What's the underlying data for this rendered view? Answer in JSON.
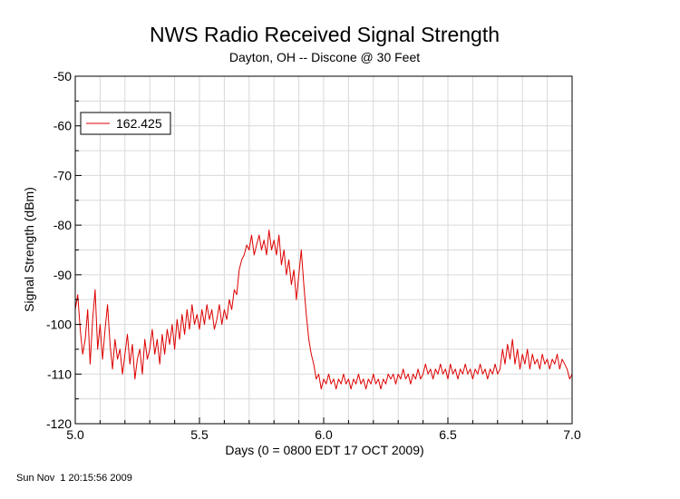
{
  "chart_data": {
    "type": "line",
    "title": "NWS Radio Received Signal Strength",
    "subtitle": "Dayton, OH -- Discone @ 30 Feet",
    "xlabel": "Days (0 = 0800 EDT 17 OCT 2009)",
    "ylabel": "Signal Strength (dBm)",
    "xlim": [
      5.0,
      7.0
    ],
    "ylim": [
      -120,
      -50
    ],
    "xticks": [
      "5.0",
      "5.5",
      "6.0",
      "6.5",
      "7.0"
    ],
    "yticks": [
      "-50",
      "-60",
      "-70",
      "-80",
      "-90",
      "-100",
      "-110",
      "-120"
    ],
    "grid": true,
    "legend_position": "top-left",
    "series": [
      {
        "name": "162.425",
        "color": "#dd0000",
        "points": [
          [
            5.0,
            -97
          ],
          [
            5.01,
            -94
          ],
          [
            5.02,
            -101
          ],
          [
            5.03,
            -106
          ],
          [
            5.04,
            -103
          ],
          [
            5.05,
            -97
          ],
          [
            5.06,
            -108
          ],
          [
            5.07,
            -99
          ],
          [
            5.08,
            -93
          ],
          [
            5.09,
            -105
          ],
          [
            5.1,
            -100
          ],
          [
            5.11,
            -107
          ],
          [
            5.12,
            -101
          ],
          [
            5.13,
            -96
          ],
          [
            5.14,
            -104
          ],
          [
            5.15,
            -109
          ],
          [
            5.16,
            -103
          ],
          [
            5.17,
            -107
          ],
          [
            5.18,
            -105
          ],
          [
            5.19,
            -110
          ],
          [
            5.2,
            -106
          ],
          [
            5.21,
            -102
          ],
          [
            5.22,
            -108
          ],
          [
            5.23,
            -104
          ],
          [
            5.24,
            -111
          ],
          [
            5.25,
            -107
          ],
          [
            5.26,
            -105
          ],
          [
            5.27,
            -110
          ],
          [
            5.28,
            -103
          ],
          [
            5.29,
            -107
          ],
          [
            5.3,
            -105
          ],
          [
            5.31,
            -101
          ],
          [
            5.32,
            -106
          ],
          [
            5.33,
            -103
          ],
          [
            5.34,
            -108
          ],
          [
            5.35,
            -102
          ],
          [
            5.36,
            -106
          ],
          [
            5.37,
            -101
          ],
          [
            5.38,
            -104
          ],
          [
            5.39,
            -100
          ],
          [
            5.4,
            -105
          ],
          [
            5.41,
            -99
          ],
          [
            5.42,
            -103
          ],
          [
            5.43,
            -98
          ],
          [
            5.44,
            -102
          ],
          [
            5.45,
            -97
          ],
          [
            5.46,
            -101
          ],
          [
            5.47,
            -96
          ],
          [
            5.48,
            -100
          ],
          [
            5.49,
            -98
          ],
          [
            5.5,
            -101
          ],
          [
            5.51,
            -97
          ],
          [
            5.52,
            -100
          ],
          [
            5.53,
            -96
          ],
          [
            5.54,
            -99
          ],
          [
            5.55,
            -97
          ],
          [
            5.56,
            -101
          ],
          [
            5.57,
            -99
          ],
          [
            5.58,
            -96
          ],
          [
            5.59,
            -100
          ],
          [
            5.6,
            -97
          ],
          [
            5.61,
            -99
          ],
          [
            5.62,
            -95
          ],
          [
            5.63,
            -97
          ],
          [
            5.64,
            -93
          ],
          [
            5.65,
            -94
          ],
          [
            5.66,
            -89
          ],
          [
            5.67,
            -87
          ],
          [
            5.68,
            -86
          ],
          [
            5.69,
            -84
          ],
          [
            5.7,
            -85
          ],
          [
            5.71,
            -82
          ],
          [
            5.72,
            -86
          ],
          [
            5.73,
            -84
          ],
          [
            5.74,
            -82
          ],
          [
            5.75,
            -85
          ],
          [
            5.76,
            -83
          ],
          [
            5.77,
            -86
          ],
          [
            5.78,
            -81
          ],
          [
            5.79,
            -85
          ],
          [
            5.8,
            -83
          ],
          [
            5.81,
            -86
          ],
          [
            5.82,
            -82
          ],
          [
            5.83,
            -88
          ],
          [
            5.84,
            -85
          ],
          [
            5.85,
            -90
          ],
          [
            5.86,
            -87
          ],
          [
            5.87,
            -92
          ],
          [
            5.88,
            -89
          ],
          [
            5.89,
            -95
          ],
          [
            5.9,
            -90
          ],
          [
            5.91,
            -85
          ],
          [
            5.92,
            -92
          ],
          [
            5.93,
            -98
          ],
          [
            5.94,
            -103
          ],
          [
            5.95,
            -106
          ],
          [
            5.96,
            -108
          ],
          [
            5.97,
            -111
          ],
          [
            5.98,
            -110
          ],
          [
            5.99,
            -113
          ],
          [
            6.0,
            -111
          ],
          [
            6.01,
            -112
          ],
          [
            6.02,
            -110
          ],
          [
            6.03,
            -112
          ],
          [
            6.04,
            -111
          ],
          [
            6.05,
            -113
          ],
          [
            6.06,
            -111
          ],
          [
            6.07,
            -112
          ],
          [
            6.08,
            -110
          ],
          [
            6.09,
            -112
          ],
          [
            6.1,
            -111
          ],
          [
            6.11,
            -113
          ],
          [
            6.12,
            -111
          ],
          [
            6.13,
            -112
          ],
          [
            6.14,
            -110
          ],
          [
            6.15,
            -112
          ],
          [
            6.16,
            -111
          ],
          [
            6.17,
            -113
          ],
          [
            6.18,
            -111
          ],
          [
            6.19,
            -112
          ],
          [
            6.2,
            -110
          ],
          [
            6.21,
            -112
          ],
          [
            6.22,
            -111
          ],
          [
            6.23,
            -113
          ],
          [
            6.24,
            -111
          ],
          [
            6.25,
            -112
          ],
          [
            6.26,
            -110
          ],
          [
            6.27,
            -111
          ],
          [
            6.28,
            -110
          ],
          [
            6.29,
            -112
          ],
          [
            6.3,
            -110
          ],
          [
            6.31,
            -111
          ],
          [
            6.32,
            -109
          ],
          [
            6.33,
            -111
          ],
          [
            6.34,
            -110
          ],
          [
            6.35,
            -112
          ],
          [
            6.36,
            -110
          ],
          [
            6.37,
            -111
          ],
          [
            6.38,
            -109
          ],
          [
            6.39,
            -111
          ],
          [
            6.4,
            -110
          ],
          [
            6.41,
            -108
          ],
          [
            6.42,
            -110
          ],
          [
            6.43,
            -109
          ],
          [
            6.44,
            -111
          ],
          [
            6.45,
            -109
          ],
          [
            6.46,
            -110
          ],
          [
            6.47,
            -108
          ],
          [
            6.48,
            -110
          ],
          [
            6.49,
            -109
          ],
          [
            6.5,
            -111
          ],
          [
            6.51,
            -108
          ],
          [
            6.52,
            -110
          ],
          [
            6.53,
            -109
          ],
          [
            6.54,
            -111
          ],
          [
            6.55,
            -109
          ],
          [
            6.56,
            -110
          ],
          [
            6.57,
            -108
          ],
          [
            6.58,
            -110
          ],
          [
            6.59,
            -109
          ],
          [
            6.6,
            -111
          ],
          [
            6.61,
            -109
          ],
          [
            6.62,
            -110
          ],
          [
            6.63,
            -108
          ],
          [
            6.64,
            -110
          ],
          [
            6.65,
            -109
          ],
          [
            6.66,
            -111
          ],
          [
            6.67,
            -109
          ],
          [
            6.68,
            -110
          ],
          [
            6.69,
            -108
          ],
          [
            6.7,
            -110
          ],
          [
            6.71,
            -109
          ],
          [
            6.72,
            -105
          ],
          [
            6.73,
            -108
          ],
          [
            6.74,
            -104
          ],
          [
            6.75,
            -107
          ],
          [
            6.76,
            -103
          ],
          [
            6.77,
            -108
          ],
          [
            6.78,
            -105
          ],
          [
            6.79,
            -109
          ],
          [
            6.8,
            -106
          ],
          [
            6.81,
            -108
          ],
          [
            6.82,
            -105
          ],
          [
            6.83,
            -109
          ],
          [
            6.84,
            -106
          ],
          [
            6.85,
            -108
          ],
          [
            6.86,
            -107
          ],
          [
            6.87,
            -109
          ],
          [
            6.88,
            -106
          ],
          [
            6.89,
            -108
          ],
          [
            6.9,
            -107
          ],
          [
            6.91,
            -109
          ],
          [
            6.92,
            -107
          ],
          [
            6.93,
            -108
          ],
          [
            6.94,
            -106
          ],
          [
            6.95,
            -109
          ],
          [
            6.96,
            -107
          ],
          [
            6.97,
            -108
          ],
          [
            6.98,
            -109
          ],
          [
            6.99,
            -111
          ],
          [
            7.0,
            -110
          ]
        ]
      }
    ]
  },
  "footer": {
    "timestamp": "Sun Nov  1 20:15:56 2009"
  }
}
